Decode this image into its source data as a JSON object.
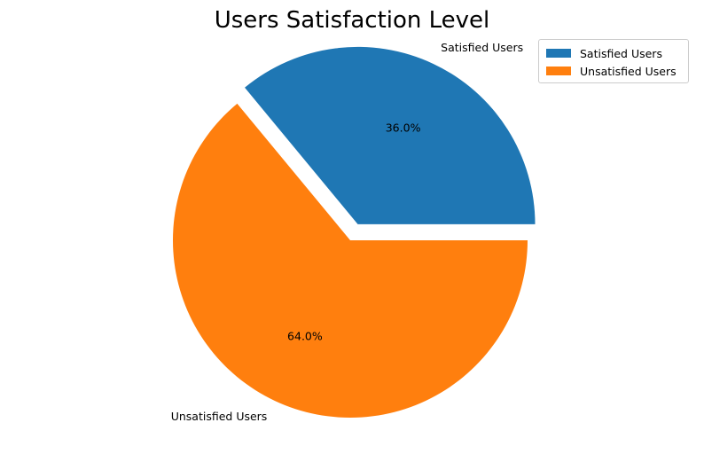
{
  "chart_data": {
    "type": "pie",
    "title": "Users Satisfaction Level",
    "labels": [
      "Satisfied Users",
      "Unsatisfied Users"
    ],
    "values": [
      36.0,
      64.0
    ],
    "pct_labels": [
      "36.0%",
      "64.0%"
    ],
    "colors": [
      "#1f77b4",
      "#ff7f0e"
    ],
    "explode": [
      0.1,
      0
    ],
    "start_angle_deg": 0,
    "legend": {
      "placement": "top-right",
      "entries": [
        "Satisfied Users",
        "Unsatisfied Users"
      ]
    }
  }
}
